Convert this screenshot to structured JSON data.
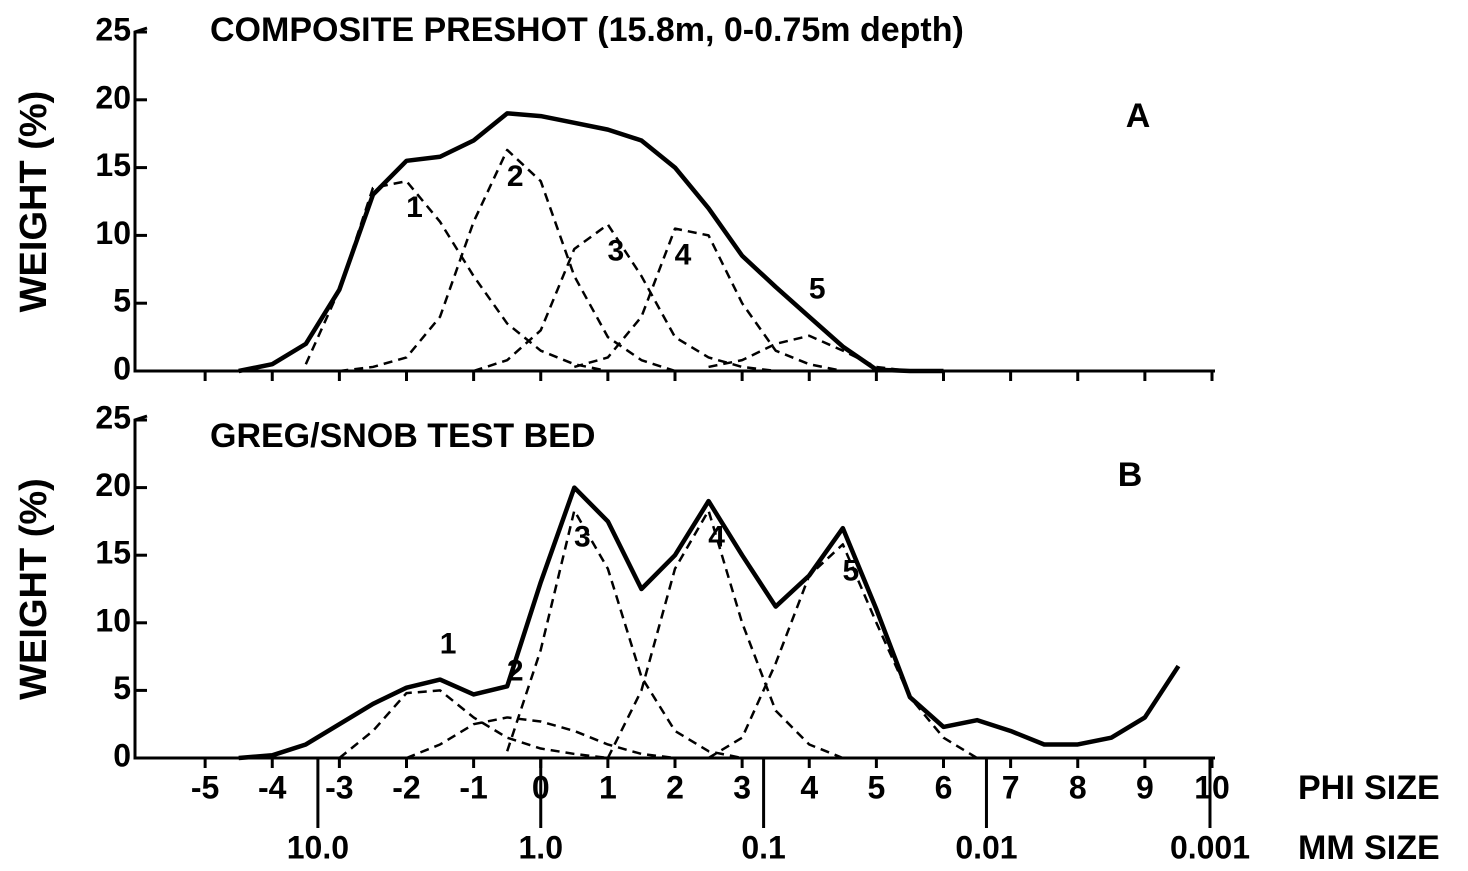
{
  "chart_data": [
    {
      "type": "line",
      "title": "COMPOSITE PRESHOT (15.8m, 0-0.75m depth)",
      "ylabel": "WEIGHT (%)",
      "annotation": "A",
      "x": [
        -4.5,
        -4,
        -3.5,
        -3,
        -2.5,
        -2,
        -1.5,
        -1,
        -0.5,
        0,
        0.5,
        1,
        1.5,
        2,
        2.5,
        3,
        3.5,
        4,
        4.5,
        5,
        5.5,
        6
      ],
      "series": [
        {
          "style": "solid",
          "color": "#000000",
          "values": [
            0,
            0.5,
            2,
            6,
            13,
            15.5,
            15.8,
            17,
            19,
            18.8,
            18.3,
            17.8,
            17,
            15,
            12,
            8.5,
            6.2,
            4,
            1.8,
            0.1,
            0,
            0
          ]
        },
        {
          "name": "1",
          "style": "dashed",
          "color": "#000000",
          "values": [
            null,
            null,
            0.5,
            6,
            13.5,
            14,
            11,
            7,
            3.5,
            1.5,
            0.5,
            0,
            null,
            null,
            null,
            null,
            null,
            null,
            null,
            null,
            null,
            null
          ]
        },
        {
          "name": "2",
          "style": "dashed",
          "color": "#000000",
          "values": [
            null,
            null,
            null,
            0,
            0.3,
            1,
            4,
            11,
            16.3,
            14,
            7,
            2.5,
            0.8,
            0,
            null,
            null,
            null,
            null,
            null,
            null,
            null,
            null
          ]
        },
        {
          "name": "3",
          "style": "dashed",
          "color": "#000000",
          "values": [
            null,
            null,
            null,
            null,
            null,
            null,
            null,
            0,
            0.8,
            3,
            9,
            10.8,
            7,
            2.5,
            1,
            0.3,
            0,
            null,
            null,
            null,
            null,
            null
          ]
        },
        {
          "name": "4",
          "style": "dashed",
          "color": "#000000",
          "values": [
            null,
            null,
            null,
            null,
            null,
            null,
            null,
            null,
            null,
            null,
            0.3,
            1,
            4,
            10.5,
            10,
            5,
            1.5,
            0.5,
            0,
            null,
            null,
            null
          ]
        },
        {
          "name": "5",
          "style": "dashed",
          "color": "#000000",
          "values": [
            null,
            null,
            null,
            null,
            null,
            null,
            null,
            null,
            null,
            null,
            null,
            null,
            null,
            null,
            0.3,
            0.8,
            2,
            2.6,
            1.5,
            0.3,
            0,
            null
          ]
        }
      ],
      "xlim": [
        -6,
        10
      ],
      "ylim": [
        0,
        25
      ],
      "yticks": [
        0,
        5,
        10,
        15,
        20,
        25
      ]
    },
    {
      "type": "line",
      "title": "GREG/SNOB TEST BED",
      "ylabel": "WEIGHT (%)",
      "annotation": "B",
      "x": [
        -4.5,
        -4,
        -3.5,
        -3,
        -2.5,
        -2,
        -1.5,
        -1,
        -0.5,
        0,
        0.5,
        1,
        1.5,
        2,
        2.5,
        3,
        3.5,
        4,
        4.5,
        5,
        5.5,
        6,
        6.5,
        7,
        7.5,
        8,
        8.5,
        9,
        9.5
      ],
      "series": [
        {
          "style": "solid",
          "color": "#000000",
          "values": [
            0,
            0.2,
            1,
            2.5,
            4,
            5.2,
            5.8,
            4.7,
            5.3,
            13,
            20,
            17.5,
            12.5,
            15,
            19,
            15,
            11.2,
            13.5,
            17,
            11,
            4.5,
            2.3,
            2.8,
            2,
            1,
            1,
            1.5,
            3,
            6.8
          ]
        },
        {
          "name": "1",
          "style": "dashed",
          "color": "#000000",
          "values": [
            null,
            null,
            null,
            0,
            2,
            4.8,
            5,
            3,
            1.5,
            0.7,
            0.3,
            0,
            null,
            null,
            null,
            null,
            null,
            null,
            null,
            null,
            null,
            null,
            null,
            null,
            null,
            null,
            null,
            null,
            null
          ]
        },
        {
          "name": "2",
          "style": "dashed",
          "color": "#000000",
          "values": [
            null,
            null,
            null,
            null,
            null,
            0,
            1,
            2.5,
            3,
            2.7,
            2,
            1,
            0.3,
            0,
            null,
            null,
            null,
            null,
            null,
            null,
            null,
            null,
            null,
            null,
            null,
            null,
            null,
            null,
            null
          ]
        },
        {
          "name": "3",
          "style": "dashed",
          "color": "#000000",
          "values": [
            null,
            null,
            null,
            null,
            null,
            null,
            null,
            null,
            0.5,
            8,
            18.3,
            14,
            6,
            2,
            0.5,
            0,
            null,
            null,
            null,
            null,
            null,
            null,
            null,
            null,
            null,
            null,
            null,
            null,
            null
          ]
        },
        {
          "name": "4",
          "style": "dashed",
          "color": "#000000",
          "values": [
            null,
            null,
            null,
            null,
            null,
            null,
            null,
            null,
            null,
            null,
            null,
            0,
            5,
            14,
            18.3,
            10,
            3.5,
            1,
            0,
            null,
            null,
            null,
            null,
            null,
            null,
            null,
            null,
            null,
            null
          ]
        },
        {
          "name": "5",
          "style": "dashed",
          "color": "#000000",
          "values": [
            null,
            null,
            null,
            null,
            null,
            null,
            null,
            null,
            null,
            null,
            null,
            null,
            null,
            null,
            0,
            1.5,
            7,
            13.5,
            15.8,
            10,
            4.5,
            1.5,
            0,
            null,
            null,
            null,
            null,
            null,
            null
          ]
        }
      ],
      "xlim": [
        -6,
        10
      ],
      "ylim": [
        0,
        25
      ],
      "yticks": [
        0,
        5,
        10,
        15,
        20,
        25
      ],
      "xlabel": "PHI SIZE",
      "xticks": [
        -5,
        -4,
        -3,
        -2,
        -1,
        0,
        1,
        2,
        3,
        4,
        5,
        6,
        7,
        8,
        9,
        10
      ],
      "x2label": "MM SIZE",
      "x2ticks": [
        {
          "value": -3.32,
          "label": "10.0"
        },
        {
          "value": 0,
          "label": "1.0"
        },
        {
          "value": 3.32,
          "label": "0.1"
        },
        {
          "value": 6.64,
          "label": "0.01"
        },
        {
          "value": 9.97,
          "label": "0.001"
        }
      ]
    }
  ]
}
